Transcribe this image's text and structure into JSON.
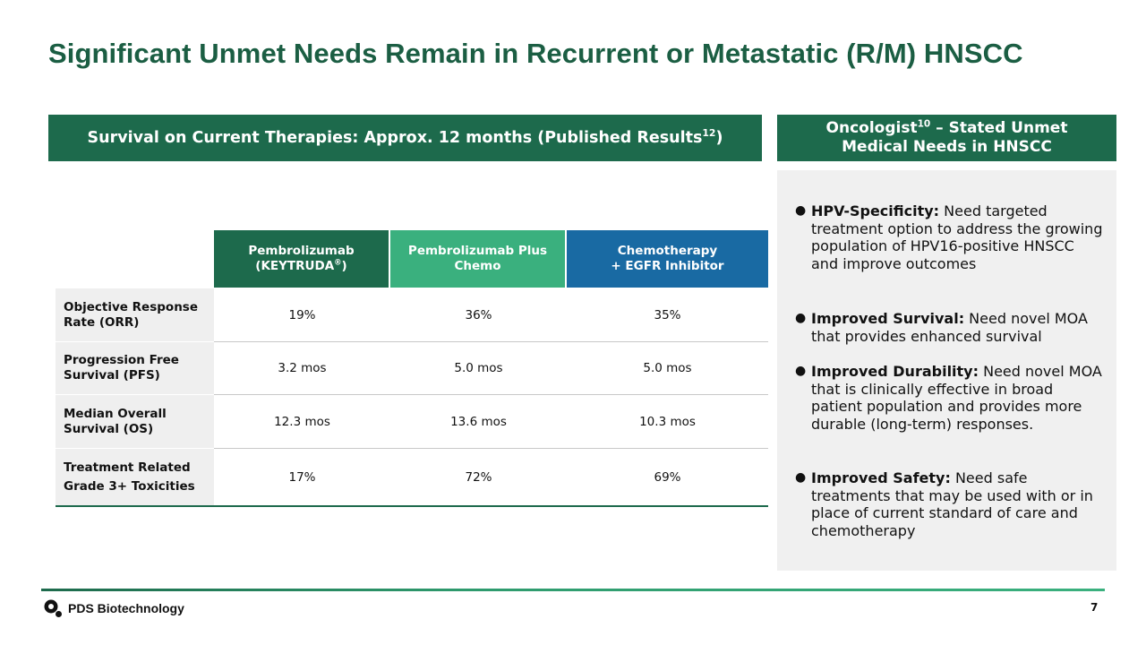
{
  "title": "Significant Unmet Needs Remain in Recurrent or Metastatic (R/M) HNSCC",
  "left_banner": {
    "text": "Survival on Current Therapies: Approx. 12 months (Published Results",
    "sup": "12",
    "close": ")"
  },
  "right_banner": {
    "line1_a": "Oncologist",
    "line1_sup": "10",
    "line1_b": " – Stated Unmet",
    "line2": "Medical Needs in HNSCC"
  },
  "table": {
    "columns": [
      {
        "line1": "Pembrolizumab",
        "line2_a": "(KEYTRUDA",
        "line2_sup": "®",
        "line2_b": ")"
      },
      {
        "line1": "Pembrolizumab Plus",
        "line2": "Chemo"
      },
      {
        "line1": "Chemotherapy",
        "line2": "+ EGFR Inhibitor"
      }
    ],
    "rows": [
      {
        "label1": "Objective Response",
        "label2": "Rate (ORR)",
        "values": [
          "19%",
          "36%",
          "35%"
        ]
      },
      {
        "label1": "Progression Free",
        "label2": "Survival (PFS)",
        "values": [
          "3.2 mos",
          "5.0 mos",
          "5.0 mos"
        ]
      },
      {
        "label1": "Median Overall",
        "label2": "Survival (OS)",
        "values": [
          "12.3 mos",
          "13.6 mos",
          "10.3 mos"
        ]
      },
      {
        "label1": "Treatment Related",
        "label2": "Grade 3+ Toxicities",
        "values": [
          "17%",
          "72%",
          "69%"
        ]
      }
    ]
  },
  "bullets": [
    {
      "bold": "HPV-Specificity:",
      "text": " Need targeted treatment option to address the growing population of HPV16-positive HNSCC and improve outcomes"
    },
    {
      "bold": "Improved Survival:",
      "text": " Need novel MOA that provides enhanced survival"
    },
    {
      "bold": "Improved Durability:",
      "text": " Need novel MOA that is clinically effective in broad patient population and provides more durable (long-term) responses."
    },
    {
      "bold": "Improved Safety:",
      "text": " Need safe treatments that may be used with or in place of current standard of care and chemotherapy"
    }
  ],
  "bullet_glyph": "●",
  "footer": {
    "logo_text": "PDS Biotechnology",
    "page_number": "7"
  },
  "colors": {
    "brand_dark_green": "#1d6a4c",
    "brand_light_green": "#3ab07e",
    "brand_blue": "#196aa3"
  }
}
